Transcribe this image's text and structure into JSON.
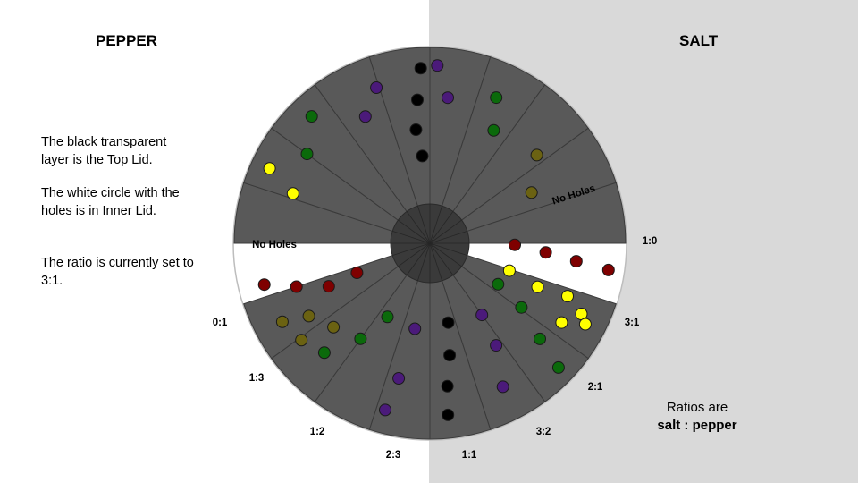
{
  "headings": {
    "pepper": "PEPPER",
    "salt": "SALT"
  },
  "notes": [
    "The black transparent layer is the Top Lid.",
    "The white circle with the holes is in Inner Lid.",
    "The ratio is currently set to 3:1."
  ],
  "ratio_note": {
    "line1": "Ratios are",
    "line2": "salt : pepper"
  },
  "current_setting": "3:1",
  "ratio_labels": [
    "1:0",
    "3:1",
    "2:1",
    "3:2",
    "1:1",
    "2:3",
    "1:2",
    "1:3",
    "0:1"
  ],
  "no_holes_label": "No Holes",
  "colors": {
    "lid": "#595959",
    "lid_line": "#3a3a3a",
    "open_window": "#ffffff",
    "hub": "#3a3a3a",
    "red": "#7f0000",
    "green": "#0b6a0b",
    "purple": "#4b1a7a",
    "black": "#000000",
    "olive": "#6b6212",
    "yellow": "#ffff00"
  }
}
